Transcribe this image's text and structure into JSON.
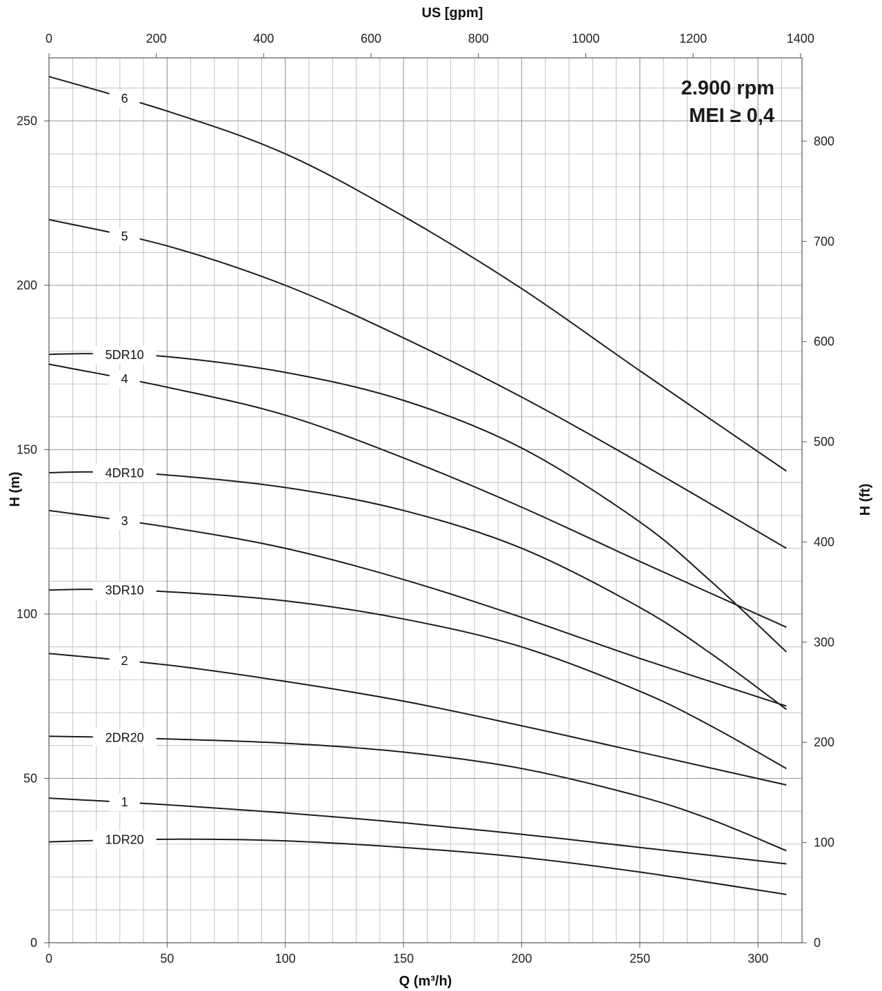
{
  "chart_data": {
    "type": "line",
    "title": "",
    "xlabel": "Q (m³/h)",
    "x2label": "US [gpm]",
    "ylabel": "H (m)",
    "y2label": "H (ft)",
    "xlim": [
      0,
      320
    ],
    "ylim": [
      0,
      265
    ],
    "x2lim": [
      0,
      1400
    ],
    "y2lim": [
      0,
      880
    ],
    "x_ticks": [
      0,
      50,
      100,
      150,
      200,
      250,
      300
    ],
    "x2_ticks": [
      0,
      200,
      400,
      600,
      800,
      1000,
      1200,
      1400
    ],
    "y_ticks": [
      0,
      50,
      100,
      150,
      200,
      250
    ],
    "y2_ticks": [
      0,
      100,
      200,
      300,
      400,
      500,
      600,
      700,
      800
    ],
    "grid": true,
    "annotations": [
      "2.900 rpm",
      "MEI ≥ 0,4"
    ],
    "colors": {
      "curve": "#1a1a1a",
      "grid": "#b4b4b4",
      "axis": "#555555"
    },
    "series": [
      {
        "name": "6",
        "label_x": 32,
        "x": [
          0,
          50,
          100,
          150,
          200,
          250,
          312
        ],
        "values": [
          263.5,
          253,
          240,
          221,
          199,
          174,
          143.5
        ]
      },
      {
        "name": "5",
        "label_x": 32,
        "x": [
          0,
          50,
          100,
          150,
          200,
          250,
          312
        ],
        "values": [
          220,
          212,
          200,
          184,
          166,
          146,
          120
        ]
      },
      {
        "name": "5DR10",
        "label_x": 32,
        "x": [
          0,
          20,
          50,
          100,
          150,
          200,
          250,
          280,
          312
        ],
        "values": [
          179,
          179.2,
          178.3,
          173.5,
          165,
          150.5,
          128,
          110,
          88.5
        ]
      },
      {
        "name": "4",
        "label_x": 32,
        "x": [
          0,
          50,
          100,
          150,
          200,
          250,
          312
        ],
        "values": [
          176,
          169,
          160.5,
          147.5,
          132.5,
          116,
          96
        ]
      },
      {
        "name": "4DR10",
        "label_x": 32,
        "x": [
          0,
          20,
          50,
          100,
          150,
          200,
          250,
          280,
          312
        ],
        "values": [
          143,
          143.2,
          142.3,
          138.5,
          131.5,
          120,
          102,
          88,
          71
        ]
      },
      {
        "name": "3",
        "label_x": 32,
        "x": [
          0,
          50,
          100,
          150,
          200,
          250,
          312
        ],
        "values": [
          131.5,
          126.5,
          120,
          110.5,
          99,
          86.5,
          72
        ]
      },
      {
        "name": "3DR10",
        "label_x": 32,
        "x": [
          0,
          20,
          50,
          100,
          150,
          200,
          250,
          280,
          312
        ],
        "values": [
          107.3,
          107.5,
          106.8,
          104,
          98.5,
          90,
          76.5,
          66,
          53
        ]
      },
      {
        "name": "2",
        "label_x": 32,
        "x": [
          0,
          50,
          100,
          150,
          200,
          250,
          312
        ],
        "values": [
          88,
          84.5,
          79.5,
          73.5,
          66,
          58,
          48
        ]
      },
      {
        "name": "2DR20",
        "label_x": 32,
        "x": [
          0,
          20,
          50,
          100,
          150,
          200,
          250,
          280,
          312
        ],
        "values": [
          62.8,
          62.6,
          62,
          60.7,
          58,
          53,
          44.5,
          37.5,
          28
        ]
      },
      {
        "name": "1",
        "label_x": 32,
        "x": [
          0,
          50,
          100,
          150,
          200,
          250,
          312
        ],
        "values": [
          44,
          42,
          39.5,
          36.5,
          33,
          29,
          24
        ]
      },
      {
        "name": "1DR20",
        "label_x": 32,
        "x": [
          0,
          30,
          60,
          100,
          150,
          200,
          250,
          312
        ],
        "values": [
          30.7,
          31.3,
          31.5,
          31,
          29,
          26,
          21.5,
          14.7
        ]
      }
    ]
  }
}
